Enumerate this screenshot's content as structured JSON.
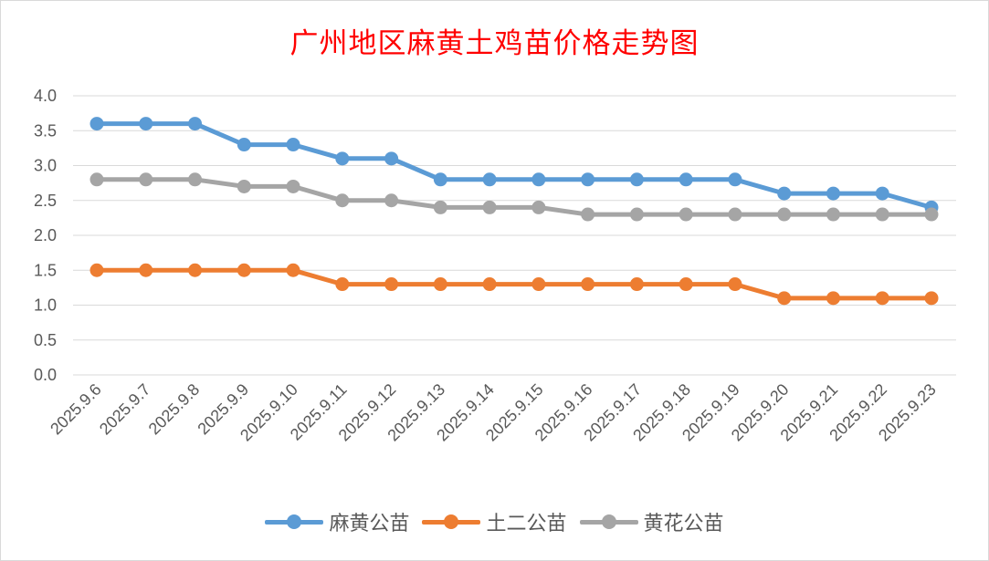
{
  "chart_data": {
    "type": "line",
    "title": "广州地区麻黄土鸡苗价格走势图",
    "categories": [
      "2025.9.6",
      "2025.9.7",
      "2025.9.8",
      "2025.9.9",
      "2025.9.10",
      "2025.9.11",
      "2025.9.12",
      "2025.9.13",
      "2025.9.14",
      "2025.9.15",
      "2025.9.16",
      "2025.9.17",
      "2025.9.18",
      "2025.9.19",
      "2025.9.20",
      "2025.9.21",
      "2025.9.22",
      "2025.9.23"
    ],
    "ylim": [
      0,
      4.0
    ],
    "yticks": [
      "0.0",
      "0.5",
      "1.0",
      "1.5",
      "2.0",
      "2.5",
      "3.0",
      "3.5",
      "4.0"
    ],
    "grid": true,
    "legend_position": "bottom",
    "series": [
      {
        "name": "麻黄公苗",
        "color": "#5b9bd5",
        "values": [
          3.6,
          3.6,
          3.6,
          3.3,
          3.3,
          3.1,
          3.1,
          2.8,
          2.8,
          2.8,
          2.8,
          2.8,
          2.8,
          2.8,
          2.6,
          2.6,
          2.6,
          2.4
        ]
      },
      {
        "name": "土二公苗",
        "color": "#ed7d31",
        "values": [
          1.5,
          1.5,
          1.5,
          1.5,
          1.5,
          1.3,
          1.3,
          1.3,
          1.3,
          1.3,
          1.3,
          1.3,
          1.3,
          1.3,
          1.1,
          1.1,
          1.1,
          1.1
        ]
      },
      {
        "name": "黄花公苗",
        "color": "#a5a5a5",
        "values": [
          2.8,
          2.8,
          2.8,
          2.7,
          2.7,
          2.5,
          2.5,
          2.4,
          2.4,
          2.4,
          2.3,
          2.3,
          2.3,
          2.3,
          2.3,
          2.3,
          2.3,
          2.3
        ]
      }
    ]
  }
}
